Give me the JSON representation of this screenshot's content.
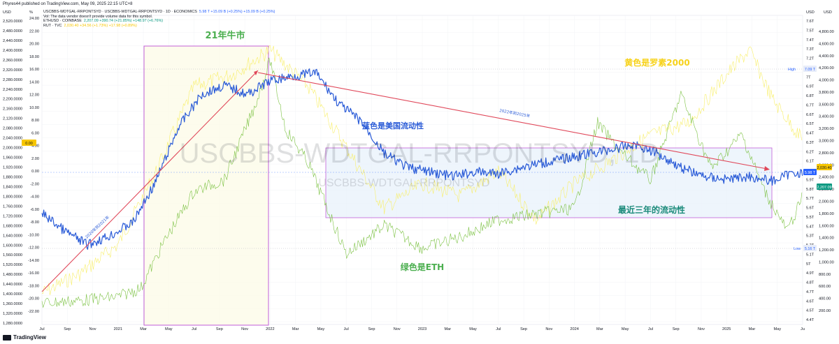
{
  "header": {
    "published": "Phyres44 published on TradingView.com, May 09, 2025 22:15 UTC+8",
    "legend": [
      {
        "text": "USCBBS-WDTGAL-RRPONTSYD · USCBBS-WDTGAL-RRPONTSYD · 1D · ECONOMICS",
        "val": "5.98 T  +15.09 B (+0.25%)  +15.09 B (+0.25%)",
        "color": "blue"
      },
      {
        "text": "Vol: The data vendor doesn't provide volume data for this symbol.",
        "val": "",
        "color": "none"
      },
      {
        "text": "ETHUSD · COINBASE",
        "val": "2,207.09  +390.74 (+21.85%)  +148.97 (+6.76%)",
        "color": "green"
      },
      {
        "text": "RUT · TVC",
        "val": "2,030.40  +34.56  (+1.73%)  +17.98 (+0.89%)",
        "color": "yel"
      }
    ]
  },
  "watermark": "USCBBS-WDTGAL-RRPONTSYD, 1D",
  "watermark2": "USCBBS-WDTGAL-RRPONTSYD",
  "logo": "TradingView",
  "annotations": {
    "bull": "21年牛市",
    "yellow": "黄色是罗素2000",
    "blue": "蓝色是美国流动性",
    "green": "绿色是ETH",
    "recent": "最近三年的流动性",
    "trend1": "2020年到2021年",
    "trend2": "2022年到2025年"
  },
  "colors": {
    "liquidity": "#2a5bd7",
    "eth": "#7cc243",
    "rut": "#f8ef6a",
    "trend": "#e0485a",
    "box": "#c25fd8",
    "range_fill": "#e8f2fb"
  },
  "tags": {
    "high_label": "High",
    "high_value": "7.09 T",
    "low_label": "Low",
    "low_value": "5.16 T",
    "current_liq": "5.98 T",
    "current_eth": "2,207.09",
    "current_rut": "2,030.40",
    "current_pct": "0.00"
  },
  "chart_data": {
    "type": "line",
    "x_ticks": [
      "Jul",
      "Sep",
      "Nov",
      "2021",
      "Mar",
      "May",
      "Jul",
      "Sep",
      "Nov",
      "2022",
      "Mar",
      "May",
      "Jul",
      "Sep",
      "Nov",
      "2023",
      "Mar",
      "May",
      "Jul",
      "Sep",
      "Nov",
      "2024",
      "Mar",
      "May",
      "Jul",
      "Sep",
      "Nov",
      "2025",
      "Mar",
      "May",
      "Ju"
    ],
    "axes": {
      "left_outer": {
        "label": "USD",
        "ticks": [
          "2,520.0000",
          "2,480.0000",
          "2,440.0000",
          "2,400.0000",
          "2,360.0000",
          "2,320.0000",
          "2,280.0000",
          "2,240.0000",
          "2,200.0000",
          "2,160.0000",
          "2,120.0000",
          "2,080.0000",
          "2,040.0000",
          "2,000.0000",
          "1,960.0000",
          "1,920.0000",
          "1,880.0000",
          "1,840.0000",
          "1,800.0000",
          "1,760.0000",
          "1,720.0000",
          "1,680.0000",
          "1,640.0000",
          "1,600.0000",
          "1,560.0000",
          "1,520.0000",
          "1,480.0000",
          "1,440.0000",
          "1,400.0000",
          "1,360.0000",
          "1,320.0000",
          "1,280.0000"
        ]
      },
      "left_inner": {
        "label": "%",
        "ticks": [
          "24.00",
          "22.00",
          "20.00",
          "18.00",
          "16.00",
          "14.00",
          "12.00",
          "10.00",
          "8.00",
          "6.00",
          "4.00",
          "2.00",
          "0.00",
          "-2.00",
          "-4.00",
          "-6.00",
          "-8.00",
          "-10.00",
          "-12.00",
          "-14.00",
          "-16.00",
          "-18.00",
          "-20.00",
          "-22.00"
        ]
      },
      "right_inner": {
        "label": "USD",
        "ticks": [
          "7.6T",
          "7.5T",
          "7.4T",
          "7.3T",
          "7.2T",
          "7.1T",
          "7T",
          "6.9T",
          "6.8T",
          "6.7T",
          "6.6T",
          "6.5T",
          "6.4T",
          "6.3T",
          "6.2T",
          "6.1T",
          "6T",
          "5.9T",
          "5.8T",
          "5.7T",
          "5.6T",
          "5.5T",
          "5.4T",
          "5.3T",
          "5.2T",
          "5.1T",
          "5T",
          "4.9T",
          "4.8T",
          "4.7T",
          "4.6T",
          "4.5T",
          "4.4T"
        ]
      },
      "right_outer": {
        "label": "USD",
        "ticks": [
          "4,800.00",
          "4,600.00",
          "4,400.00",
          "4,200.00",
          "4,000.00",
          "3,800.00",
          "3,600.00",
          "3,400.00",
          "3,200.00",
          "3,000.00",
          "2,800.00",
          "2,600.00",
          "2,400.00",
          "2,200.00",
          "2,000.00",
          "1,800.00",
          "1,600.00",
          "1,400.00",
          "1,200.00",
          "1,000.00",
          "800.00",
          "600.00",
          "400.00",
          "200.00"
        ]
      }
    },
    "series": [
      {
        "name": "USCBBS-WDTGAL-RRPONTSYD",
        "unit": "T USD",
        "color": "#2a5bd7",
        "x": [
          0,
          0.03,
          0.06,
          0.09,
          0.12,
          0.15,
          0.18,
          0.21,
          0.24,
          0.27,
          0.3,
          0.33,
          0.36,
          0.39,
          0.42,
          0.45,
          0.48,
          0.51,
          0.54,
          0.57,
          0.6,
          0.63,
          0.66,
          0.69,
          0.72,
          0.75,
          0.78,
          0.81,
          0.84,
          0.87,
          0.9,
          0.93,
          0.96,
          0.99,
          1.0
        ],
        "y": [
          5.55,
          5.35,
          5.2,
          5.3,
          5.45,
          5.9,
          6.5,
          6.85,
          6.95,
          6.85,
          7.0,
          7.05,
          7.09,
          6.75,
          6.55,
          6.2,
          6.05,
          6.0,
          5.95,
          6.0,
          5.98,
          6.05,
          6.1,
          6.15,
          6.2,
          6.25,
          6.3,
          6.2,
          6.05,
          5.95,
          5.92,
          5.95,
          5.9,
          6.0,
          5.98
        ]
      },
      {
        "name": "ETHUSD · COINBASE",
        "unit": "USD",
        "color": "#7cc243",
        "x": [
          0,
          0.05,
          0.1,
          0.13,
          0.16,
          0.2,
          0.24,
          0.28,
          0.3,
          0.32,
          0.35,
          0.4,
          0.45,
          0.5,
          0.55,
          0.6,
          0.65,
          0.7,
          0.73,
          0.76,
          0.8,
          0.84,
          0.88,
          0.92,
          0.95,
          0.98,
          1.0
        ],
        "y": [
          340,
          380,
          450,
          600,
          1400,
          2300,
          2500,
          3800,
          4600,
          3400,
          2800,
          1200,
          1700,
          1300,
          1500,
          1800,
          1900,
          2000,
          3500,
          3000,
          2500,
          4000,
          2700,
          3300,
          2300,
          1600,
          2207
        ]
      },
      {
        "name": "RUT · TVC",
        "unit": "USD",
        "color": "#f8ef6a",
        "x": [
          0,
          0.05,
          0.1,
          0.15,
          0.2,
          0.25,
          0.3,
          0.35,
          0.4,
          0.45,
          0.5,
          0.55,
          0.6,
          0.65,
          0.7,
          0.75,
          0.8,
          0.85,
          0.9,
          0.93,
          0.96,
          1.0
        ],
        "y": [
          1400,
          1480,
          1600,
          1900,
          2250,
          2300,
          2400,
          2250,
          2000,
          1750,
          1850,
          1800,
          1900,
          1700,
          1850,
          1950,
          2050,
          2100,
          2300,
          2400,
          2200,
          2030
        ]
      }
    ]
  }
}
